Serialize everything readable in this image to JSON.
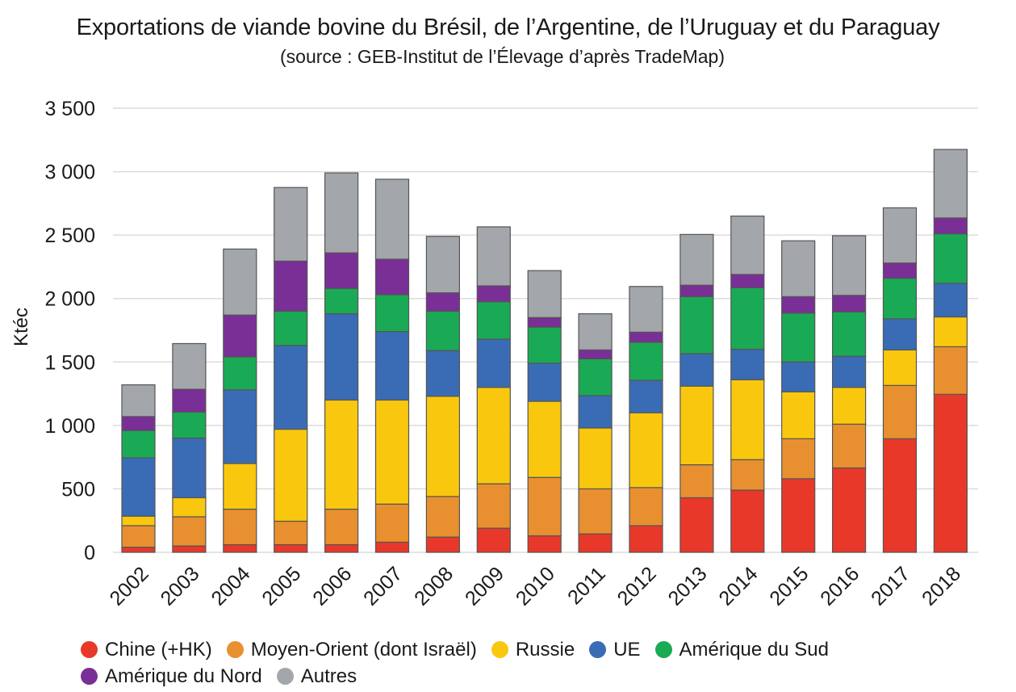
{
  "chart_data": {
    "type": "bar",
    "stacked": true,
    "title": "Exportations de viande bovine du Brésil, de l’Argentine, de l’Uruguay et du Paraguay",
    "subtitle": "(source : GEB-Institut de l’Élevage d’après TradeMap)",
    "ylabel": "Ktéc",
    "xlabel": "",
    "ylim": [
      0,
      3500
    ],
    "yticks": [
      0,
      500,
      1000,
      1500,
      2000,
      2500,
      3000,
      3500
    ],
    "ytick_labels": [
      "0",
      "500",
      "1 000",
      "1 500",
      "2 000",
      "2 500",
      "3 000",
      "3 500"
    ],
    "grid": true,
    "legend_position": "bottom",
    "categories": [
      "2002",
      "2003",
      "2004",
      "2005",
      "2006",
      "2007",
      "2008",
      "2009",
      "2010",
      "2011",
      "2012",
      "2013",
      "2014",
      "2015",
      "2016",
      "2017",
      "2018"
    ],
    "series": [
      {
        "name": "Chine (+HK)",
        "color": "#e8382a",
        "values": [
          40,
          50,
          60,
          60,
          60,
          80,
          120,
          190,
          130,
          145,
          210,
          430,
          490,
          580,
          665,
          895,
          1245
        ]
      },
      {
        "name": "Moyen-Orient (dont Israël)",
        "color": "#e8902f",
        "values": [
          170,
          230,
          280,
          185,
          280,
          300,
          320,
          350,
          460,
          355,
          300,
          260,
          240,
          315,
          345,
          420,
          375
        ]
      },
      {
        "name": "Russie",
        "color": "#f9c80e",
        "values": [
          75,
          150,
          360,
          725,
          860,
          820,
          790,
          760,
          600,
          480,
          590,
          620,
          630,
          370,
          290,
          280,
          235
        ]
      },
      {
        "name": "UE",
        "color": "#3a6cb5",
        "values": [
          460,
          470,
          580,
          660,
          680,
          540,
          360,
          380,
          300,
          255,
          255,
          255,
          240,
          235,
          245,
          245,
          265
        ]
      },
      {
        "name": "Amérique du Sud",
        "color": "#1aaa55",
        "values": [
          215,
          205,
          260,
          270,
          200,
          290,
          310,
          295,
          285,
          290,
          300,
          450,
          485,
          385,
          350,
          320,
          390
        ]
      },
      {
        "name": "Amérique du Nord",
        "color": "#7a2f97",
        "values": [
          110,
          180,
          330,
          395,
          280,
          280,
          145,
          125,
          75,
          70,
          80,
          90,
          105,
          130,
          130,
          120,
          125
        ]
      },
      {
        "name": "Autres",
        "color": "#a3a6aa",
        "values": [
          250,
          360,
          520,
          580,
          630,
          630,
          445,
          465,
          370,
          285,
          360,
          400,
          460,
          440,
          470,
          435,
          540
        ]
      }
    ]
  }
}
